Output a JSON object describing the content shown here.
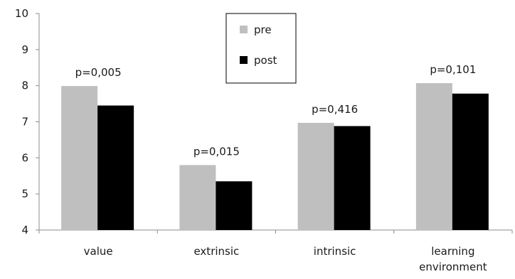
{
  "chart_data": {
    "type": "bar",
    "categories": [
      [
        "value"
      ],
      [
        "extrinsic"
      ],
      [
        "intrinsic"
      ],
      [
        "learning",
        "environment"
      ]
    ],
    "series": [
      {
        "name": "pre",
        "values": [
          7.99,
          5.8,
          6.97,
          8.07
        ],
        "color": "#bfbfbf"
      },
      {
        "name": "post",
        "values": [
          7.45,
          5.35,
          6.88,
          7.78
        ],
        "color": "#000000"
      }
    ],
    "annotations": [
      "p=0,005",
      "p=0,015",
      "p=0,416",
      "p=0,101"
    ],
    "yticks": [
      "4",
      "5",
      "6",
      "7",
      "8",
      "9",
      "10"
    ],
    "ylim": [
      4,
      10
    ],
    "grid": false,
    "legend": {
      "position": "top-center",
      "framed": true
    }
  }
}
